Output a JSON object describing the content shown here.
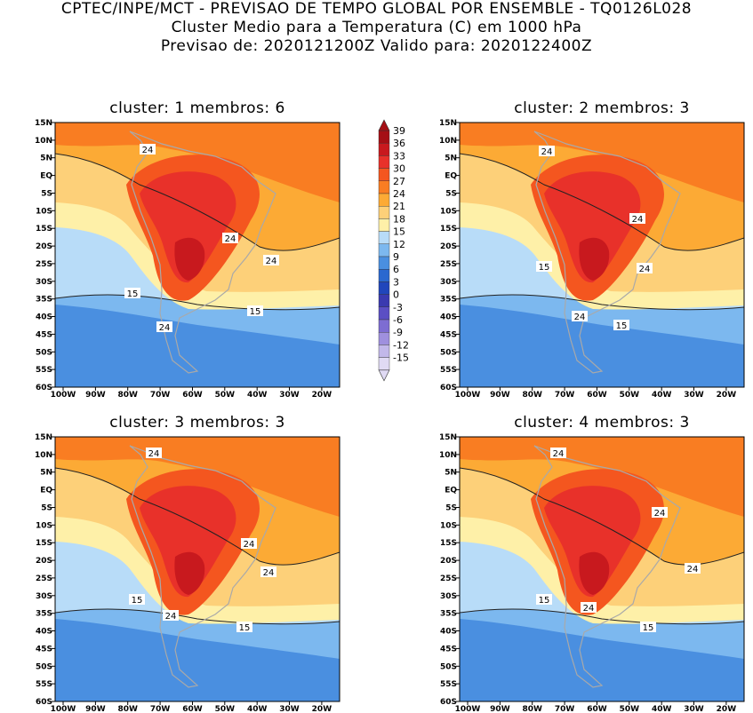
{
  "header": {
    "line1": "CPTEC/INPE/MCT - PREVISAO DE TEMPO GLOBAL POR ENSEMBLE - TQ0126L028",
    "line2": "Cluster Medio para a Temperatura (C) em 1000 hPa",
    "line3": "Previsao de: 2020121200Z   Valido para: 2020122400Z"
  },
  "chart_data": {
    "type": "heatmap",
    "axes": {
      "lon_ticks": [
        "100W",
        "90W",
        "80W",
        "70W",
        "60W",
        "50W",
        "40W",
        "30W",
        "20W"
      ],
      "lat_ticks": [
        "15N",
        "10N",
        "5N",
        "EQ",
        "5S",
        "10S",
        "15S",
        "20S",
        "25S",
        "30S",
        "35S",
        "40S",
        "45S",
        "50S",
        "55S",
        "60S"
      ],
      "lon_range": [
        -101,
        -13
      ],
      "lat_range": [
        -60,
        15
      ]
    },
    "colorbar": {
      "levels": [
        39,
        36,
        33,
        30,
        27,
        24,
        21,
        18,
        15,
        12,
        9,
        6,
        3,
        0,
        -3,
        -6,
        -9,
        -12,
        -15
      ],
      "colors": [
        "#a50f15",
        "#c8191e",
        "#e8312a",
        "#f4561f",
        "#f97d22",
        "#fcaa35",
        "#fdd079",
        "#fef0a8",
        "#b8dcf8",
        "#7cb8ef",
        "#4a8fe0",
        "#2a68cf",
        "#2046bb",
        "#3a3ab0",
        "#5b4fc4",
        "#7d6dd2",
        "#9f90de",
        "#c2b8ea",
        "#e0daf4"
      ]
    },
    "contour_labels": [
      "24",
      "15"
    ],
    "panels": [
      {
        "cluster": "1",
        "membros": "6",
        "title": "cluster: 1   membros: 6"
      },
      {
        "cluster": "2",
        "membros": "3",
        "title": "cluster: 2   membros: 3"
      },
      {
        "cluster": "3",
        "membros": "3",
        "title": "cluster: 3   membros: 3"
      },
      {
        "cluster": "4",
        "membros": "3",
        "title": "cluster: 4   membros: 3"
      }
    ]
  }
}
